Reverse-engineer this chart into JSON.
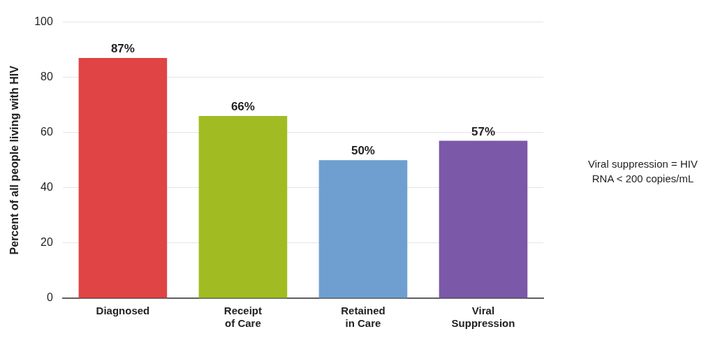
{
  "chart_data": {
    "type": "bar",
    "ylabel": "Percent of all people living with HIV",
    "categories": [
      "Diagnosed",
      "Receipt of Care",
      "Retained in Care",
      "Viral Suppression"
    ],
    "values": [
      87,
      66,
      50,
      57
    ],
    "value_labels": [
      "87%",
      "66%",
      "50%",
      "57%"
    ],
    "colors": [
      "#e04444",
      "#a0bc22",
      "#6f9fd0",
      "#7b58a8"
    ],
    "ylim": [
      0,
      100
    ],
    "yticks": [
      0,
      20,
      40,
      60,
      80,
      100
    ],
    "grid": "y",
    "annotations": [
      "Viral suppression = HIV RNA < 200 copies/mL"
    ]
  }
}
